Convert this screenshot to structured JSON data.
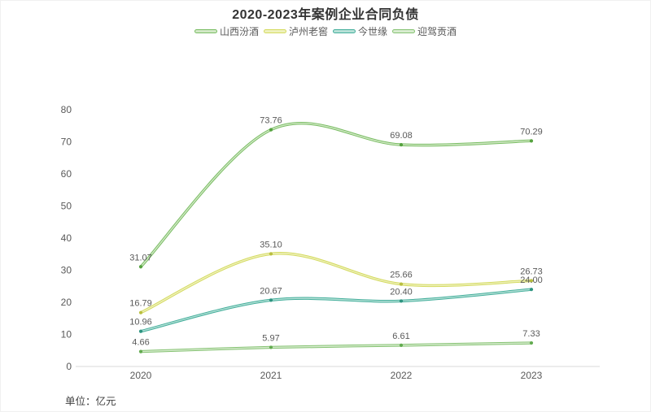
{
  "title": "2020-2023年案例企业合同负债",
  "unit_note": "单位：亿元",
  "chart_data": {
    "type": "line",
    "smooth": true,
    "grid": false,
    "legend_position": "top",
    "title": "2020-2023年案例企业合同负债",
    "categories": [
      "2020",
      "2021",
      "2022",
      "2023"
    ],
    "series": [
      {
        "name": "山西汾酒",
        "color": "#79bd63",
        "color_light": "#d2e8c6",
        "marker_color": "#55a23f",
        "values": [
          31.07,
          73.76,
          69.08,
          70.29
        ]
      },
      {
        "name": "泸州老窖",
        "color": "#d4da5f",
        "color_light": "#eef1bd",
        "marker_color": "#b9bf40",
        "values": [
          16.79,
          35.1,
          25.66,
          26.73
        ]
      },
      {
        "name": "今世缘",
        "color": "#43ae9b",
        "color_light": "#b7e1d7",
        "marker_color": "#2e9480",
        "values": [
          10.96,
          20.67,
          20.4,
          24.0
        ]
      },
      {
        "name": "迎驾贡酒",
        "color": "#85c272",
        "color_light": "#d8ecd0",
        "marker_color": "#63ab50",
        "values": [
          4.66,
          5.97,
          6.61,
          7.33
        ]
      }
    ],
    "ylim": [
      0,
      80
    ],
    "ytick_step": 10,
    "yticks": [
      0,
      10,
      20,
      30,
      40,
      50,
      60,
      70,
      80
    ],
    "label_decimals": 2,
    "xlabel": "",
    "ylabel": "",
    "colors": {
      "axis_line": "#d9d9d9",
      "axis_text": "#595959",
      "data_label_text": "#595959",
      "title_text": "#333333",
      "legend_text": "#595959",
      "background": "#ffffff"
    }
  }
}
